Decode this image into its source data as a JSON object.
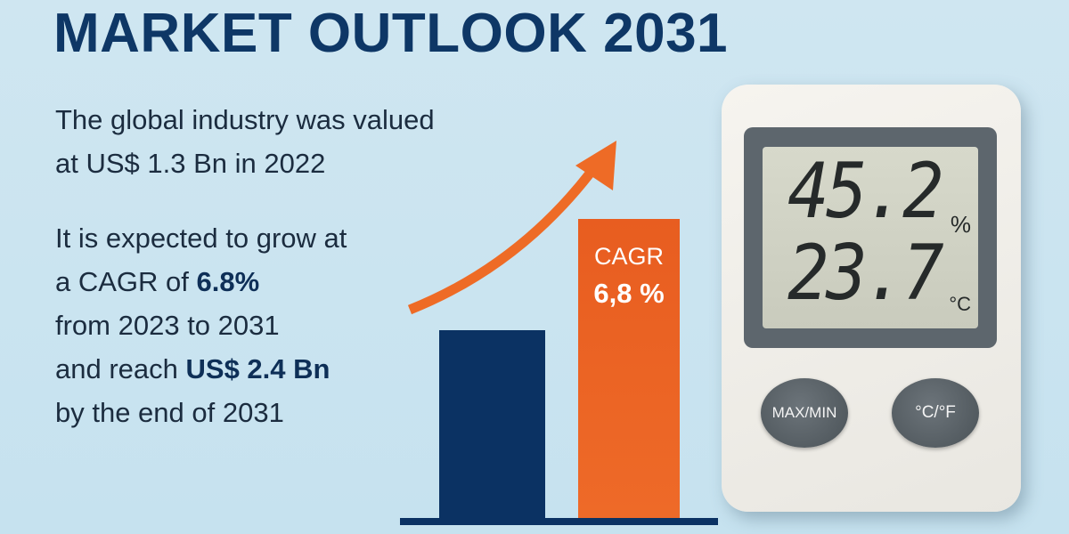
{
  "title": "MARKET OUTLOOK 2031",
  "intro": {
    "line1": "The global industry was valued",
    "line2": "at US$ 1.3 Bn in 2022"
  },
  "forecast": {
    "line1": "It is expected to grow at",
    "line2_prefix": "a CAGR of ",
    "line2_bold": "6.8%",
    "line3": "from 2023 to 2031",
    "line4_prefix": "and reach ",
    "line4_bold": "US$ 2.4 Bn",
    "line5": "by the end of 2031"
  },
  "bars": {
    "cagr_label": "CAGR",
    "cagr_value": "6,8 %"
  },
  "hygrometer": {
    "humidity": "45.2",
    "humidity_unit": "%",
    "temperature": "23.7",
    "temperature_unit": "°C",
    "button_left": "MAX/MIN",
    "button_right": "°C/°F"
  },
  "colors": {
    "navy": "#0b3263",
    "orange": "#e85d20",
    "background": "#c9e3ef"
  }
}
